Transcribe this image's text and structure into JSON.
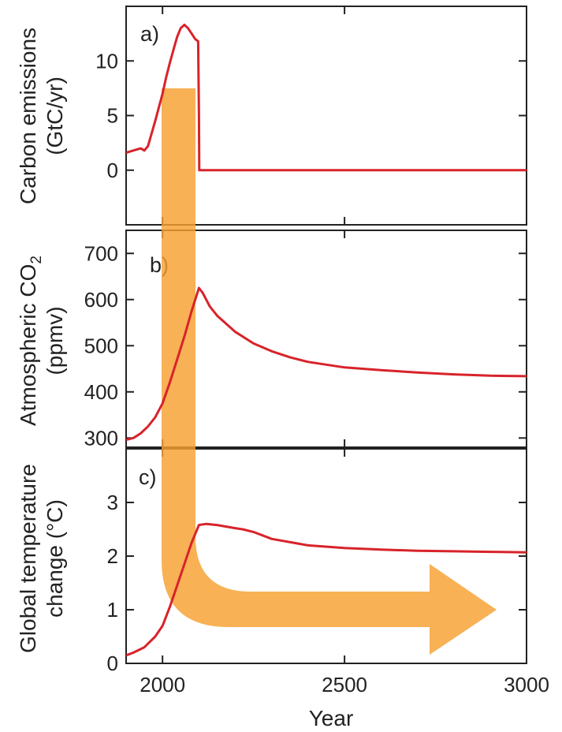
{
  "chart_data": [
    {
      "type": "line",
      "panel_label": "a)",
      "ylabel_lines": [
        "Carbon emissions",
        "(GtC/yr)"
      ],
      "yticks": [
        0,
        5,
        10
      ],
      "ylim": [
        -5,
        15
      ],
      "xlim": [
        1900,
        3000
      ],
      "series": [
        {
          "color": "#d8232a",
          "x": [
            1900,
            1920,
            1940,
            1950,
            1960,
            1980,
            2000,
            2010,
            2020,
            2030,
            2040,
            2050,
            2060,
            2070,
            2080,
            2090,
            2098,
            2100,
            2101,
            2150,
            2200,
            2300,
            2400,
            2500,
            2600,
            2700,
            2800,
            2900,
            3000
          ],
          "y": [
            1.6,
            1.8,
            2.0,
            1.8,
            2.2,
            4.5,
            7.0,
            8.5,
            9.8,
            11.0,
            12.2,
            13.0,
            13.3,
            13.0,
            12.5,
            12.0,
            11.8,
            5.0,
            0.0,
            0.0,
            0.0,
            0.0,
            0.0,
            0.0,
            0.0,
            0.0,
            0.0,
            0.0,
            0.0
          ]
        }
      ]
    },
    {
      "type": "line",
      "panel_label": "b)",
      "ylabel_main": "Atmospheric CO",
      "ylabel_sub": "2",
      "ylabel_line2": "(ppmv)",
      "yticks": [
        300,
        400,
        500,
        600,
        700
      ],
      "ylim": [
        280,
        750
      ],
      "xlim": [
        1900,
        3000
      ],
      "series": [
        {
          "color": "#d8232a",
          "x": [
            1900,
            1920,
            1940,
            1960,
            1980,
            2000,
            2020,
            2040,
            2060,
            2080,
            2100,
            2110,
            2130,
            2150,
            2200,
            2250,
            2300,
            2350,
            2400,
            2500,
            2600,
            2700,
            2800,
            2900,
            3000
          ],
          "y": [
            296,
            300,
            310,
            325,
            345,
            375,
            420,
            470,
            520,
            575,
            625,
            615,
            585,
            565,
            530,
            505,
            488,
            475,
            465,
            453,
            447,
            442,
            438,
            435,
            434
          ]
        }
      ]
    },
    {
      "type": "line",
      "panel_label": "c)",
      "ylabel_lines": [
        "Global temperature",
        "change (°C)"
      ],
      "yticks": [
        0,
        1,
        2,
        3
      ],
      "ylim": [
        0,
        4
      ],
      "xlim": [
        1900,
        3000
      ],
      "xticks": [
        2000,
        2500,
        3000
      ],
      "xlabel": "Year",
      "series": [
        {
          "color": "#d8232a",
          "x": [
            1900,
            1920,
            1950,
            1980,
            2000,
            2020,
            2040,
            2060,
            2080,
            2100,
            2120,
            2150,
            2200,
            2220,
            2250,
            2300,
            2400,
            2500,
            2600,
            2700,
            2800,
            2900,
            3000
          ],
          "y": [
            0.15,
            0.2,
            0.3,
            0.5,
            0.7,
            1.05,
            1.45,
            1.85,
            2.25,
            2.58,
            2.6,
            2.58,
            2.52,
            2.5,
            2.45,
            2.32,
            2.2,
            2.15,
            2.12,
            2.1,
            2.09,
            2.08,
            2.07
          ]
        }
      ]
    }
  ],
  "colors": {
    "line": "#d8232a",
    "arrow": "#f7a030",
    "axis": "#222222",
    "background": "#ffffff"
  },
  "arrow": {
    "note": "orange L-shaped arrow from 2000s emissions down through temperature and pointing right toward 3000"
  }
}
